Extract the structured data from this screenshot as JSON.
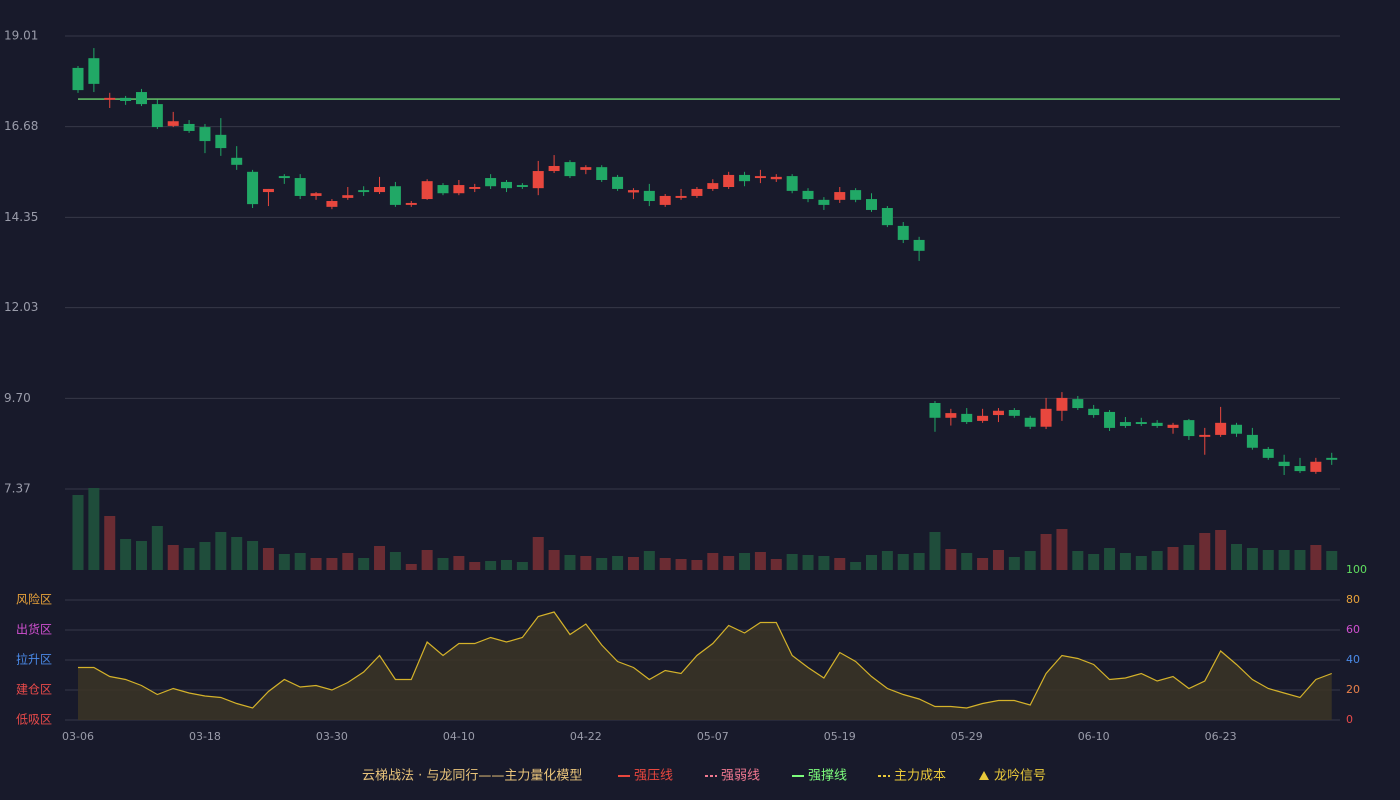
{
  "chart_data": {
    "type": "candlestick",
    "categories": [
      "03-06",
      null,
      null,
      null,
      null,
      null,
      null,
      null,
      "03-18",
      null,
      null,
      null,
      null,
      null,
      null,
      null,
      "03-30",
      null,
      null,
      null,
      null,
      null,
      null,
      null,
      "04-10",
      null,
      null,
      null,
      null,
      null,
      null,
      null,
      "04-22",
      null,
      null,
      null,
      null,
      null,
      null,
      null,
      "05-07",
      null,
      null,
      null,
      null,
      null,
      null,
      null,
      "05-19",
      null,
      null,
      null,
      null,
      null,
      null,
      null,
      "05-29",
      null,
      null,
      null,
      null,
      null,
      null,
      null,
      "06-10",
      null,
      null,
      null,
      null,
      null,
      null,
      null,
      "06-23",
      null,
      null,
      null,
      null,
      null,
      null,
      null
    ],
    "open": [
      18.19,
      18.44,
      17.37,
      17.42,
      17.57,
      17.26,
      16.7,
      16.75,
      16.67,
      16.47,
      15.88,
      15.52,
      15.0,
      15.41,
      15.36,
      14.9,
      14.62,
      14.85,
      15.05,
      15.0,
      15.15,
      14.67,
      14.82,
      15.18,
      14.97,
      15.08,
      15.36,
      15.26,
      15.18,
      15.1,
      15.54,
      15.77,
      15.57,
      15.64,
      15.39,
      14.99,
      15.03,
      14.67,
      14.85,
      14.9,
      15.08,
      15.13,
      15.44,
      15.36,
      15.33,
      15.41,
      15.03,
      14.8,
      14.8,
      15.05,
      14.82,
      14.59,
      14.13,
      13.77,
      9.58,
      9.2,
      9.3,
      9.12,
      9.27,
      9.4,
      9.2,
      8.97,
      9.38,
      9.68,
      9.43,
      9.35,
      9.09,
      9.09,
      9.07,
      8.94,
      9.14,
      8.71,
      8.76,
      9.02,
      8.76,
      8.4,
      8.07,
      7.96,
      7.81,
      8.17
    ],
    "high": [
      18.24,
      18.7,
      17.55,
      17.47,
      17.65,
      17.37,
      17.06,
      16.85,
      16.75,
      16.9,
      16.18,
      15.57,
      15.08,
      15.46,
      15.46,
      15.0,
      14.82,
      15.13,
      15.15,
      15.39,
      15.26,
      14.77,
      15.33,
      15.23,
      15.31,
      15.21,
      15.46,
      15.31,
      15.23,
      15.8,
      15.95,
      15.82,
      15.69,
      15.69,
      15.44,
      15.1,
      15.21,
      14.95,
      15.08,
      15.13,
      15.33,
      15.52,
      15.52,
      15.57,
      15.46,
      15.46,
      15.1,
      14.87,
      15.13,
      15.1,
      14.97,
      14.64,
      14.23,
      13.85,
      9.63,
      9.43,
      9.45,
      9.43,
      9.45,
      9.45,
      9.25,
      9.71,
      9.86,
      9.76,
      9.53,
      9.4,
      9.22,
      9.2,
      9.14,
      9.07,
      9.17,
      8.94,
      9.48,
      9.07,
      8.94,
      8.45,
      8.25,
      8.17,
      8.17,
      8.3
    ],
    "low": [
      17.55,
      17.57,
      17.16,
      17.24,
      17.21,
      16.62,
      16.67,
      16.52,
      16.0,
      15.93,
      15.57,
      14.59,
      14.64,
      15.21,
      14.82,
      14.8,
      14.56,
      14.8,
      14.9,
      14.95,
      14.62,
      14.62,
      14.8,
      14.92,
      14.92,
      15.0,
      15.08,
      15.0,
      15.08,
      14.92,
      15.49,
      15.36,
      15.46,
      15.26,
      15.03,
      14.82,
      14.64,
      14.62,
      14.8,
      14.85,
      15.03,
      15.08,
      15.15,
      15.23,
      15.26,
      14.97,
      14.74,
      14.54,
      14.72,
      14.74,
      14.49,
      14.1,
      13.69,
      13.23,
      8.84,
      9.0,
      9.04,
      9.07,
      9.09,
      9.2,
      8.91,
      8.91,
      9.12,
      9.4,
      9.2,
      8.86,
      8.94,
      8.99,
      8.94,
      8.79,
      8.63,
      8.25,
      8.71,
      8.71,
      8.38,
      8.12,
      7.73,
      7.78,
      7.76,
      7.99
    ],
    "close": [
      17.62,
      17.78,
      17.42,
      17.34,
      17.26,
      16.67,
      16.82,
      16.57,
      16.31,
      16.13,
      15.7,
      14.69,
      15.08,
      15.36,
      14.9,
      14.97,
      14.77,
      14.92,
      15.0,
      15.13,
      14.67,
      14.72,
      15.28,
      14.97,
      15.18,
      15.13,
      15.15,
      15.1,
      15.13,
      15.54,
      15.67,
      15.41,
      15.64,
      15.31,
      15.08,
      15.05,
      14.77,
      14.9,
      14.9,
      15.08,
      15.23,
      15.44,
      15.28,
      15.41,
      15.39,
      15.03,
      14.82,
      14.67,
      15.0,
      14.8,
      14.54,
      14.15,
      13.77,
      13.49,
      9.2,
      9.32,
      9.09,
      9.25,
      9.38,
      9.25,
      8.97,
      9.43,
      9.71,
      9.45,
      9.27,
      8.94,
      8.99,
      9.04,
      8.99,
      9.02,
      8.73,
      8.76,
      9.07,
      8.79,
      8.43,
      8.17,
      7.96,
      7.83,
      8.07,
      8.12
    ],
    "up_color": "#e8473e",
    "down_color": "#21a866",
    "ylim": [
      7.37,
      19.01
    ],
    "yticks": [
      19.01,
      16.68,
      14.35,
      12.03,
      {
        "value": 9.7,
        "label": "9.70"
      },
      7.37
    ],
    "support_line": {
      "value": 17.39,
      "color": "#7cfc7c"
    },
    "grid": true,
    "volume": {
      "values": [
        75,
        82,
        54,
        31,
        29,
        44,
        25,
        22,
        28,
        38,
        33,
        29,
        22,
        16,
        17,
        12,
        12,
        17,
        12,
        24,
        18,
        6,
        20,
        12,
        14,
        8,
        9,
        10,
        8,
        33,
        20,
        15,
        14,
        12,
        14,
        13,
        19,
        12,
        11,
        10,
        17,
        14,
        17,
        18,
        11,
        16,
        15,
        14,
        12,
        8,
        15,
        19,
        16,
        17,
        38,
        21,
        17,
        12,
        20,
        13,
        19,
        36,
        41,
        19,
        16,
        22,
        17,
        14,
        19,
        23,
        25,
        37,
        40,
        26,
        22,
        20,
        20,
        20,
        25,
        19
      ],
      "vlim": [
        0,
        82
      ],
      "up_color": "#6b2c33",
      "down_color": "#1f4d3b"
    },
    "indicator": {
      "values": [
        35,
        35,
        29,
        27,
        23,
        17,
        21,
        18,
        16,
        15,
        11,
        8,
        19,
        27,
        22,
        23,
        20,
        25,
        32,
        43,
        27,
        27,
        52,
        43,
        51,
        51,
        55,
        52,
        55,
        69,
        72,
        57,
        64,
        50,
        39,
        35,
        27,
        33,
        31,
        43,
        51,
        63,
        58,
        65,
        65,
        43,
        35,
        28,
        45,
        39,
        29,
        21,
        17,
        14,
        9,
        9,
        8,
        11,
        13,
        13,
        10,
        31,
        43,
        41,
        37,
        27,
        28,
        31,
        26,
        29,
        21,
        26,
        46,
        37,
        27,
        21,
        18,
        15,
        27,
        31
      ],
      "color": "#d4b22a",
      "ylim": [
        0,
        100
      ],
      "yticks": [
        0,
        20,
        40,
        60,
        80,
        100
      ],
      "ytick_colors": [
        "#e84a4a",
        "#e8804a",
        "#4a8ae8",
        "#d050d0",
        "#e8a23a",
        "#5fe05f"
      ],
      "zones": [
        {
          "label": "风险区",
          "value": 80,
          "color": "#e8a23a"
        },
        {
          "label": "出货区",
          "value": 60,
          "color": "#d050d0"
        },
        {
          "label": "拉升区",
          "value": 40,
          "color": "#4a8ae8"
        },
        {
          "label": "建仓区",
          "value": 20,
          "color": "#e84a4a"
        },
        {
          "label": "低吸区",
          "value": 0,
          "color": "#e84a4a"
        }
      ]
    },
    "legend": {
      "title": "云梯战法 · 与龙同行——主力量化模型",
      "title_color": "#e8c37a",
      "items": [
        {
          "label": "强压线",
          "color": "#e8473e",
          "marker": "line"
        },
        {
          "label": "强弱线",
          "color": "#f07890",
          "marker": "dash"
        },
        {
          "label": "强撑线",
          "color": "#7cfc7c",
          "marker": "line"
        },
        {
          "label": "主力成本",
          "color": "#e8c83a",
          "marker": "dash"
        },
        {
          "label": "龙吟信号",
          "color": "#e8c83a",
          "marker": "triangle"
        }
      ]
    }
  }
}
